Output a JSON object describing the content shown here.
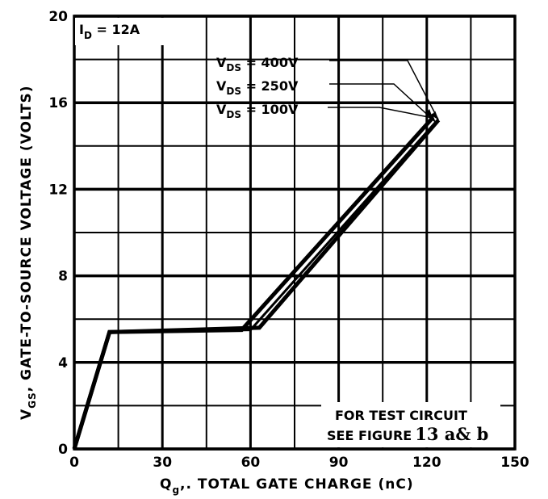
{
  "chart_data": {
    "type": "line",
    "xlabel_main": "Q",
    "xlabel_sub": "g",
    "xlabel_rest": ",. TOTAL GATE CHARGE (nC)",
    "ylabel_main": "V",
    "ylabel_sub": "GS",
    "ylabel_rest": ", GATE-TO-SOURCE VOLTAGE (VOLTS)",
    "xlim": [
      0,
      150
    ],
    "ylim": [
      0,
      20
    ],
    "xticks": [
      0,
      30,
      60,
      90,
      120,
      150
    ],
    "yticks": [
      0,
      4,
      8,
      12,
      16,
      20
    ],
    "grid": true,
    "condition": {
      "main": "I",
      "sub": "D",
      "rest": " = 12A"
    },
    "series": [
      {
        "name_main": "V",
        "name_sub": "DS",
        "name_rest": " = 400V",
        "x": [
          0,
          12,
          63,
          124
        ],
        "y": [
          0,
          5.4,
          5.6,
          15.2
        ]
      },
      {
        "name_main": "V",
        "name_sub": "DS",
        "name_rest": " = 250V",
        "x": [
          0,
          12,
          60,
          123
        ],
        "y": [
          0,
          5.4,
          5.5,
          15.1
        ]
      },
      {
        "name_main": "V",
        "name_sub": "DS",
        "name_rest": " = 100V",
        "x": [
          0,
          12,
          57,
          122
        ],
        "y": [
          0,
          5.4,
          5.5,
          15.3
        ]
      }
    ],
    "note_line1": "FOR TEST CIRCUIT",
    "note_line2_a": "SEE FIGURE",
    "note_line2_b": "13 a& b"
  }
}
